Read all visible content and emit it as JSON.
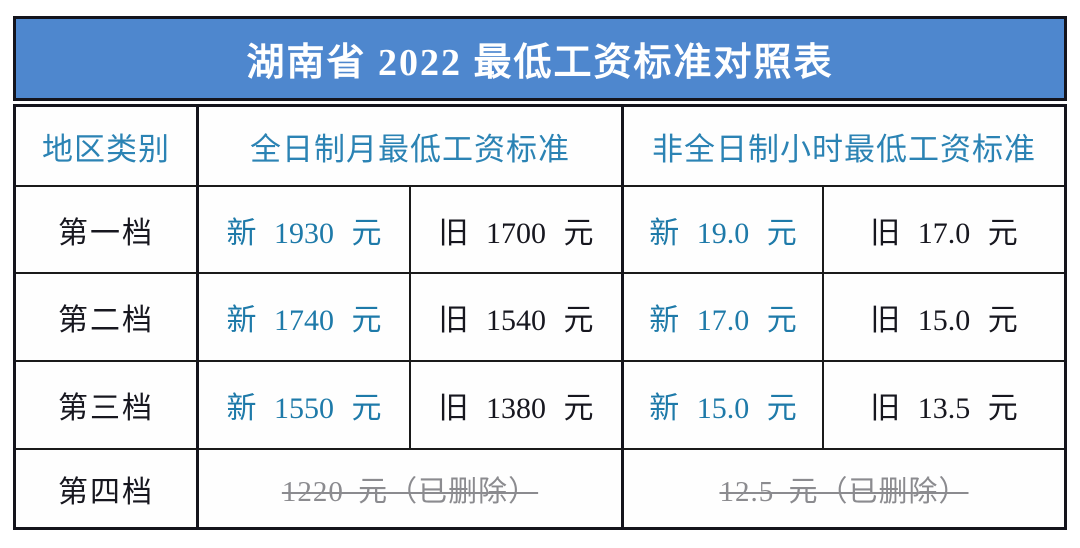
{
  "title": "湖南省 2022 最低工资标准对照表",
  "table": {
    "headers": {
      "region": "地区类别",
      "fulltime": "全日制月最低工资标准",
      "parttime": "非全日制小时最低工资标准"
    },
    "rows": [
      {
        "label": "第一档",
        "ft_new": "新 1930 元",
        "ft_old": "旧 1700 元",
        "pt_new": "新 19.0 元",
        "pt_old": "旧 17.0 元"
      },
      {
        "label": "第二档",
        "ft_new": "新 1740 元",
        "ft_old": "旧 1540 元",
        "pt_new": "新 17.0 元",
        "pt_old": "旧 15.0 元"
      },
      {
        "label": "第三档",
        "ft_new": "新 1550 元",
        "ft_old": "旧 1380 元",
        "pt_new": "新 15.0 元",
        "pt_old": "旧 13.5 元"
      }
    ],
    "deleted_row": {
      "label": "第四档",
      "ft_deleted": "1220 元（已删除）",
      "pt_deleted": "12.5 元（已删除）"
    }
  },
  "colors": {
    "title_bar_background": "#4e87ce",
    "title_text": "#ffffff",
    "header_text": "#2b83b4",
    "new_value_text": "#1e7aa9",
    "old_value_text": "#17171f",
    "deleted_text": "#8b8b8f",
    "border": "#14141c"
  }
}
